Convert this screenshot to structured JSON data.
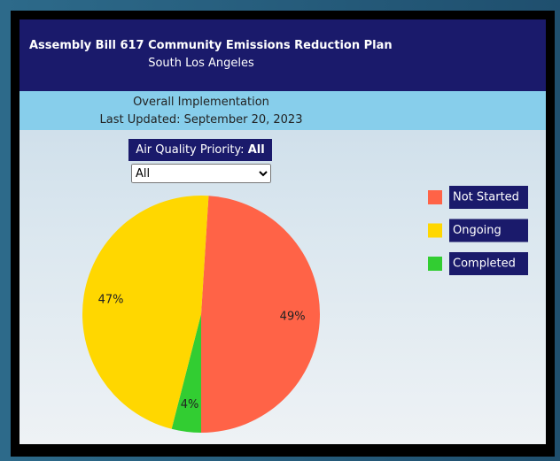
{
  "header": {
    "title": "Assembly Bill 617 Community Emissions Reduction Plan",
    "subtitle": "South Los Angeles"
  },
  "band": {
    "title": "Overall Implementation",
    "updated": "Last Updated: September 20, 2023"
  },
  "filter": {
    "label": "Air Quality Priority:",
    "current": "All",
    "options": [
      "All"
    ]
  },
  "chart_data": {
    "type": "pie",
    "categories": [
      "Not Started",
      "Ongoing",
      "Completed"
    ],
    "values": [
      49,
      47,
      4
    ],
    "value_labels": [
      "49%",
      "47%",
      "4%"
    ],
    "colors": [
      "#ff6347",
      "#ffd700",
      "#32cd32"
    ],
    "legend": "right"
  }
}
